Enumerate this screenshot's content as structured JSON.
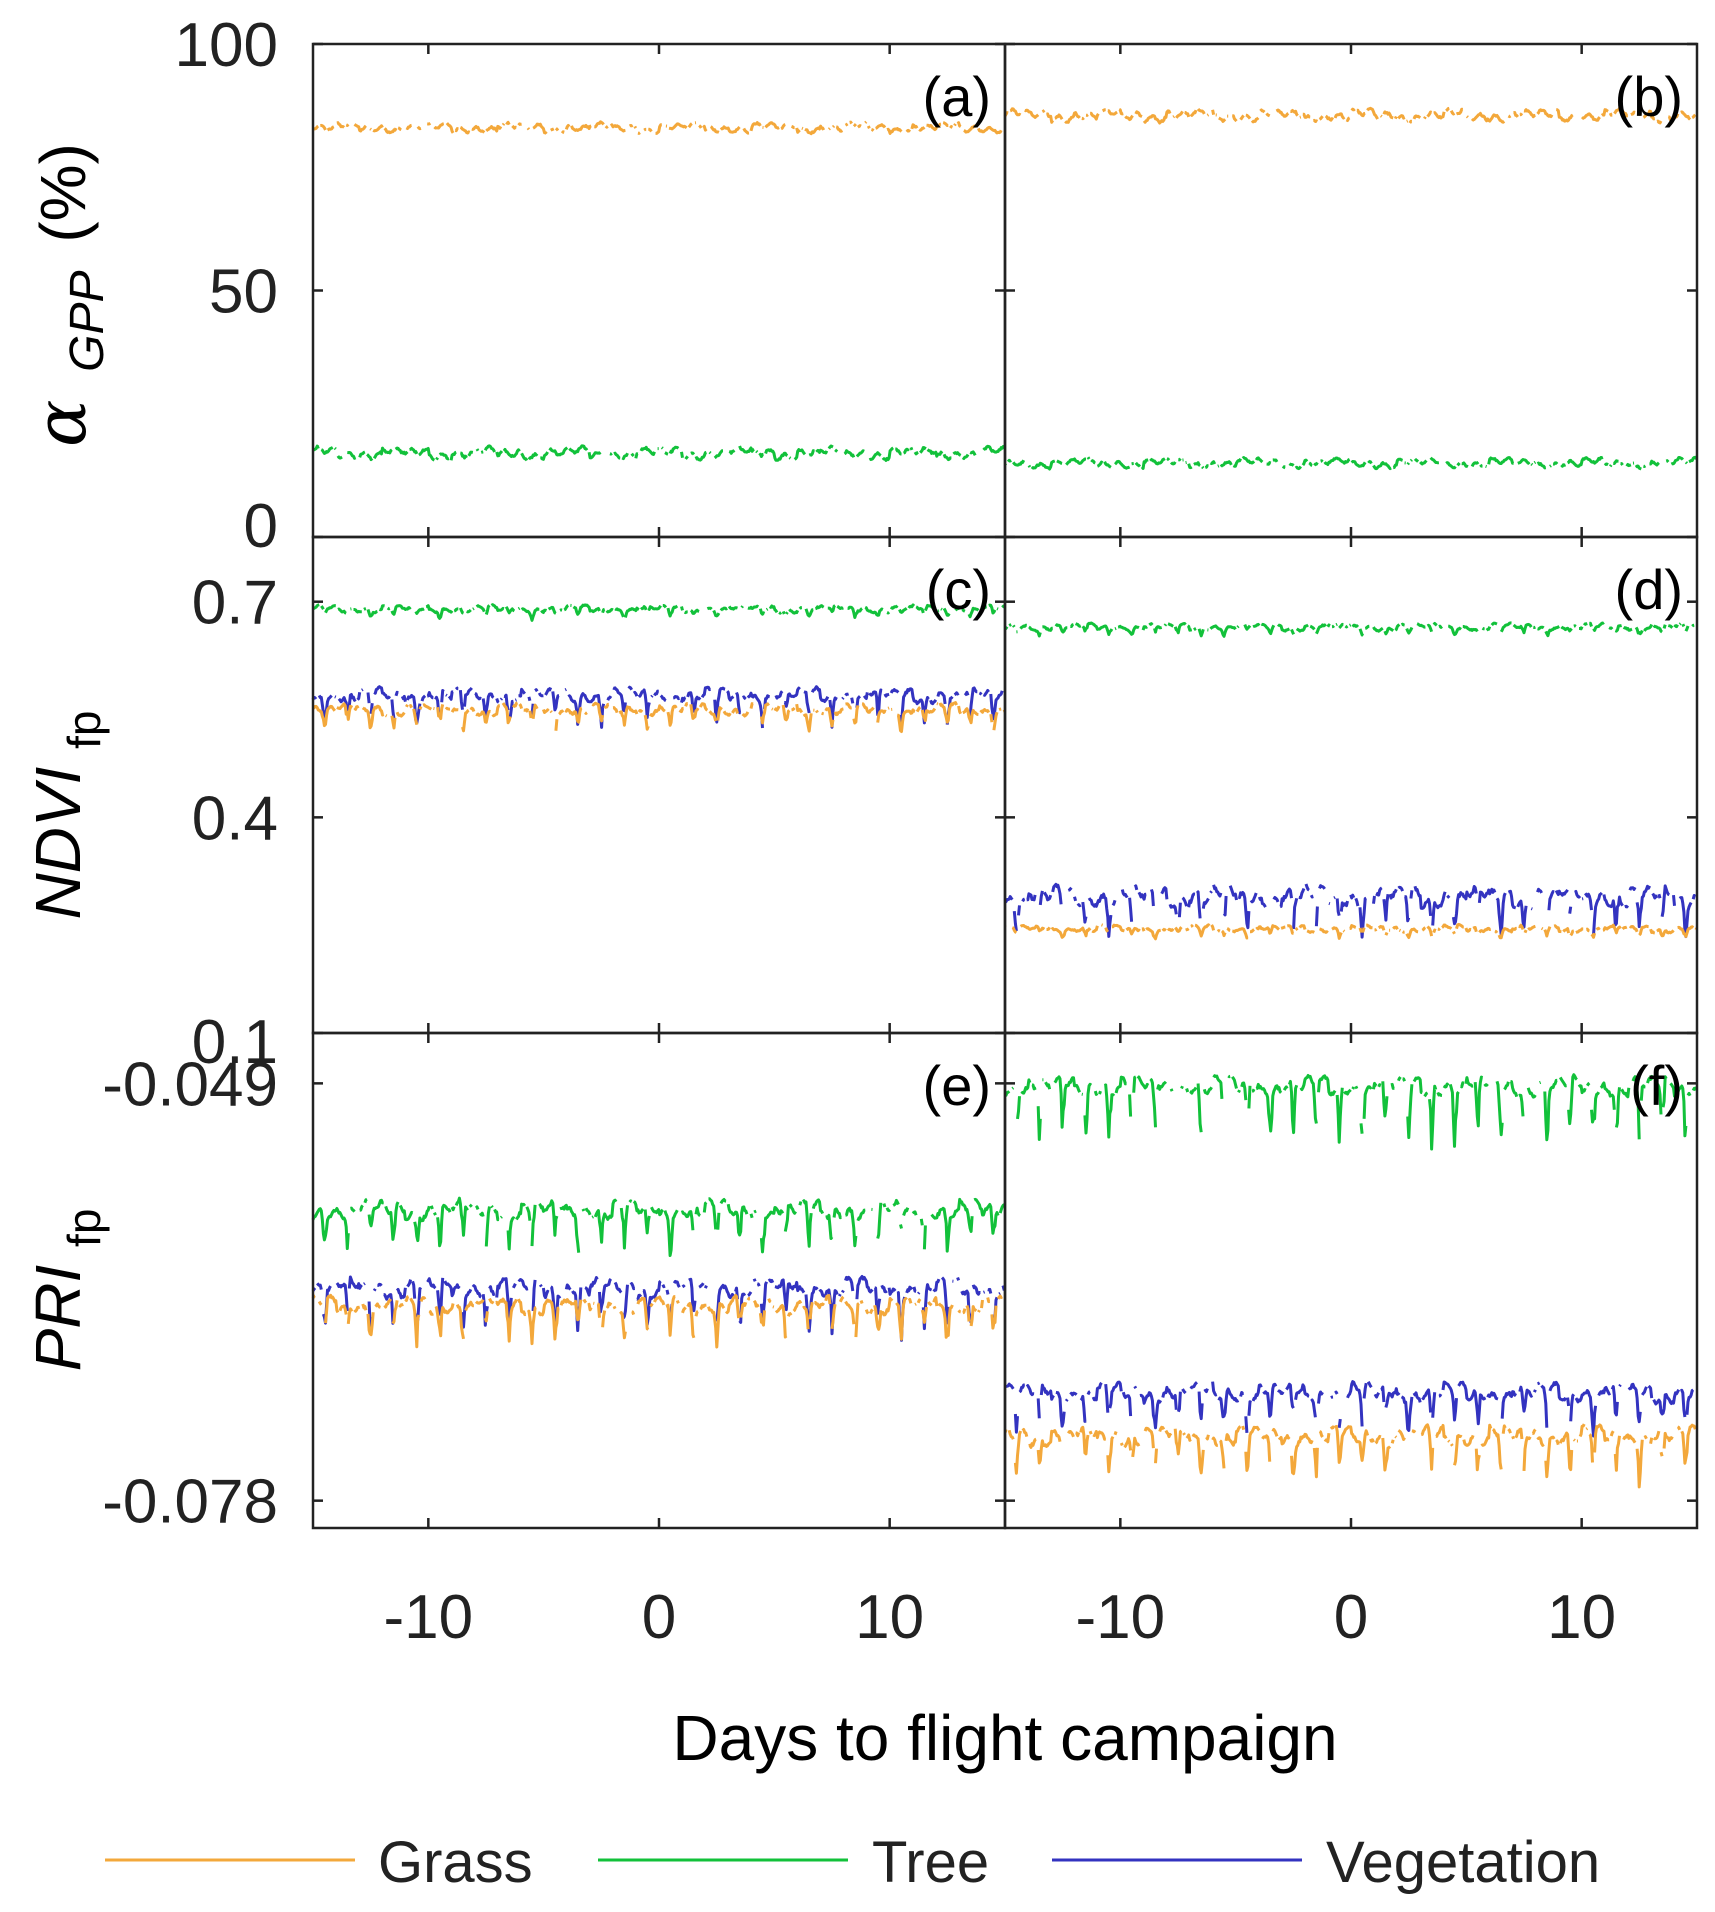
{
  "chart_data": {
    "type": "line",
    "layout": "3x2 small multiples",
    "xlabel": "Days to flight campaign",
    "xlim": [
      -15,
      15
    ],
    "xticks": [
      -10,
      0,
      10
    ],
    "xtick_labels": [
      "-10",
      "0",
      "10"
    ],
    "rows": [
      {
        "ylabel_main": "α",
        "ylabel_sub": "GPP",
        "ylabel_unit": "(%)",
        "ylim": [
          0,
          100
        ],
        "yticks": [
          0,
          50,
          100
        ],
        "ytick_labels": [
          "0",
          "50",
          "100"
        ]
      },
      {
        "ylabel_main": "NDVI",
        "ylabel_sub": "fp",
        "ylim": [
          0.1,
          0.79
        ],
        "yticks": [
          0.1,
          0.4,
          0.7
        ],
        "ytick_labels": [
          "0.1",
          "0.4",
          "0.7"
        ]
      },
      {
        "ylabel_main": "PRI",
        "ylabel_sub": "fp",
        "ylim": [
          -0.0799,
          -0.0455
        ],
        "yticks": [
          -0.078,
          -0.049
        ],
        "ytick_labels": [
          "-0.078",
          "-0.049"
        ]
      }
    ],
    "legend": [
      {
        "name": "Grass",
        "color": "#F3A83B"
      },
      {
        "name": "Tree",
        "color": "#12C13A"
      },
      {
        "name": "Vegetation",
        "color": "#3333C0"
      }
    ],
    "legend_position": "bottom",
    "panels": [
      {
        "label": "(a)",
        "row": 0,
        "col": 0,
        "series": [
          {
            "name": "Grass",
            "base": 83,
            "amp": 1.2,
            "drop": 0
          },
          {
            "name": "Tree",
            "base": 17,
            "amp": 1.5,
            "drop": 0
          }
        ]
      },
      {
        "label": "(b)",
        "row": 0,
        "col": 1,
        "series": [
          {
            "name": "Grass",
            "base": 85.5,
            "amp": 1.5,
            "drop": 0
          },
          {
            "name": "Tree",
            "base": 15,
            "amp": 1.2,
            "drop": 0
          }
        ]
      },
      {
        "label": "(c)",
        "row": 1,
        "col": 0,
        "series": [
          {
            "name": "Tree",
            "base": 0.69,
            "amp": 0.006,
            "drop": 0.012
          },
          {
            "name": "Vegetation",
            "base": 0.57,
            "amp": 0.012,
            "drop": 0.045
          },
          {
            "name": "Grass",
            "base": 0.55,
            "amp": 0.01,
            "drop": 0.03
          }
        ]
      },
      {
        "label": "(d)",
        "row": 1,
        "col": 1,
        "series": [
          {
            "name": "Tree",
            "base": 0.665,
            "amp": 0.006,
            "drop": 0.012
          },
          {
            "name": "Vegetation",
            "base": 0.29,
            "amp": 0.018,
            "drop": 0.055
          },
          {
            "name": "Grass",
            "base": 0.245,
            "amp": 0.006,
            "drop": 0.012
          }
        ]
      },
      {
        "label": "(e)",
        "row": 2,
        "col": 0,
        "series": [
          {
            "name": "Tree",
            "base": -0.0578,
            "amp": 0.0008,
            "drop": 0.003
          },
          {
            "name": "Vegetation",
            "base": -0.0632,
            "amp": 0.0008,
            "drop": 0.0035
          },
          {
            "name": "Grass",
            "base": -0.0644,
            "amp": 0.0007,
            "drop": 0.003
          }
        ]
      },
      {
        "label": "(f)",
        "row": 2,
        "col": 1,
        "series": [
          {
            "name": "Tree",
            "base": -0.0492,
            "amp": 0.0008,
            "drop": 0.0045
          },
          {
            "name": "Vegetation",
            "base": -0.0705,
            "amp": 0.0008,
            "drop": 0.003
          },
          {
            "name": "Grass",
            "base": -0.0735,
            "amp": 0.0008,
            "drop": 0.003
          }
        ]
      }
    ]
  }
}
